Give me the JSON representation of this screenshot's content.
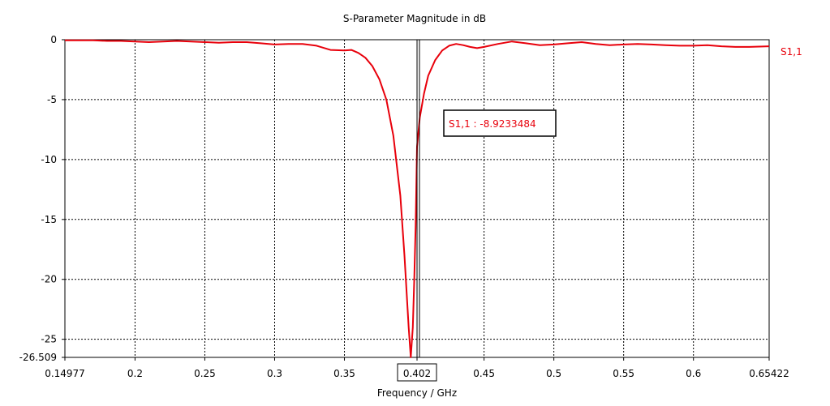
{
  "chart_data": {
    "type": "line",
    "title": "S-Parameter Magnitude in dB",
    "xlabel": "Frequency / GHz",
    "ylabel": "",
    "xlim": [
      0.14977,
      0.65422
    ],
    "ylim": [
      -26.509,
      0
    ],
    "xticks": [
      {
        "value": 0.14977,
        "label": "0.14977"
      },
      {
        "value": 0.2,
        "label": "0.2"
      },
      {
        "value": 0.25,
        "label": "0.25"
      },
      {
        "value": 0.3,
        "label": "0.3"
      },
      {
        "value": 0.35,
        "label": "0.35"
      },
      {
        "value": 0.402,
        "label": "0.402"
      },
      {
        "value": 0.45,
        "label": "0.45"
      },
      {
        "value": 0.5,
        "label": "0.5"
      },
      {
        "value": 0.55,
        "label": "0.55"
      },
      {
        "value": 0.6,
        "label": "0.6"
      },
      {
        "value": 0.65422,
        "label": "0.65422"
      }
    ],
    "yticks": [
      {
        "value": 0,
        "label": "0"
      },
      {
        "value": -5,
        "label": "-5"
      },
      {
        "value": -10,
        "label": "-10"
      },
      {
        "value": -15,
        "label": "-15"
      },
      {
        "value": -20,
        "label": "-20"
      },
      {
        "value": -25,
        "label": "-25"
      },
      {
        "value": -26.509,
        "label": "-26.509"
      }
    ],
    "grid": true,
    "series": [
      {
        "name": "S1,1",
        "color": "#e8000b",
        "x": [
          0.14977,
          0.16,
          0.17,
          0.18,
          0.19,
          0.2,
          0.21,
          0.22,
          0.23,
          0.24,
          0.25,
          0.26,
          0.27,
          0.28,
          0.29,
          0.3,
          0.31,
          0.32,
          0.33,
          0.34,
          0.35,
          0.355,
          0.36,
          0.365,
          0.37,
          0.375,
          0.38,
          0.385,
          0.39,
          0.393,
          0.396,
          0.3975,
          0.399,
          0.4,
          0.401,
          0.402,
          0.404,
          0.407,
          0.41,
          0.415,
          0.42,
          0.425,
          0.43,
          0.435,
          0.44,
          0.445,
          0.45,
          0.46,
          0.47,
          0.48,
          0.49,
          0.5,
          0.51,
          0.52,
          0.53,
          0.54,
          0.55,
          0.56,
          0.57,
          0.58,
          0.59,
          0.6,
          0.61,
          0.62,
          0.63,
          0.64,
          0.65422
        ],
        "y": [
          -0.05,
          -0.05,
          -0.05,
          -0.1,
          -0.1,
          -0.15,
          -0.2,
          -0.15,
          -0.1,
          -0.15,
          -0.2,
          -0.25,
          -0.2,
          -0.2,
          -0.3,
          -0.4,
          -0.35,
          -0.35,
          -0.5,
          -0.85,
          -0.9,
          -0.85,
          -1.1,
          -1.5,
          -2.2,
          -3.3,
          -5.0,
          -8.0,
          -13.0,
          -18.0,
          -24.0,
          -26.5,
          -24.0,
          -20.0,
          -15.5,
          -8.9233484,
          -6.5,
          -4.5,
          -3.0,
          -1.7,
          -0.9,
          -0.5,
          -0.35,
          -0.45,
          -0.6,
          -0.7,
          -0.6,
          -0.35,
          -0.15,
          -0.3,
          -0.45,
          -0.4,
          -0.3,
          -0.2,
          -0.35,
          -0.45,
          -0.4,
          -0.35,
          -0.4,
          -0.45,
          -0.5,
          -0.5,
          -0.45,
          -0.55,
          -0.6,
          -0.6,
          -0.55
        ]
      }
    ],
    "legend": {
      "position": "right",
      "entries": [
        "S1,1"
      ]
    },
    "marker": {
      "x": 0.402,
      "x_label": "0.402",
      "annotation": "S1,1 : -8.9233484"
    }
  }
}
